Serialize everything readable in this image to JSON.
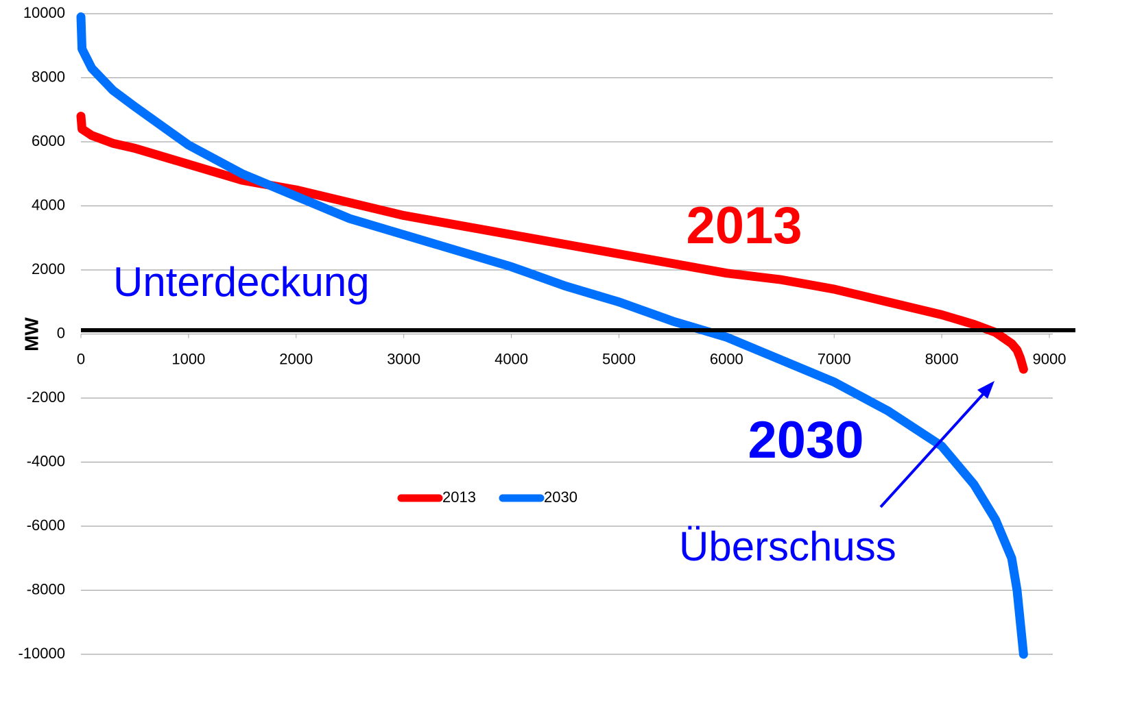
{
  "chart_data": {
    "type": "line",
    "y_label": "MW",
    "x": [
      0,
      10,
      100,
      300,
      500,
      1000,
      1500,
      2000,
      2500,
      3000,
      3500,
      4000,
      4500,
      5000,
      5500,
      6000,
      6500,
      7000,
      7500,
      8000,
      8300,
      8500,
      8650,
      8700,
      8730,
      8760
    ],
    "series": [
      {
        "name": "2013",
        "color": "#ff0000",
        "values": [
          6800,
          6400,
          6200,
          5950,
          5800,
          5300,
          4800,
          4500,
          4100,
          3700,
          3400,
          3100,
          2800,
          2500,
          2200,
          1900,
          1700,
          1400,
          1000,
          600,
          300,
          50,
          -300,
          -500,
          -750,
          -1100
        ]
      },
      {
        "name": "2030",
        "color": "#0070ff",
        "values": [
          9900,
          8900,
          8300,
          7600,
          7100,
          5900,
          5000,
          4300,
          3600,
          3100,
          2600,
          2100,
          1500,
          1000,
          400,
          -100,
          -800,
          -1500,
          -2400,
          -3500,
          -4700,
          -5800,
          -7000,
          -8000,
          -9000,
          -10000
        ]
      }
    ],
    "xlim": [
      0,
      9000
    ],
    "xticks": [
      0,
      1000,
      2000,
      3000,
      4000,
      5000,
      6000,
      7000,
      8000,
      9000
    ],
    "ylim": [
      -10000,
      10000
    ],
    "yticks": [
      -10000,
      -8000,
      -6000,
      -4000,
      -2000,
      0,
      2000,
      4000,
      6000,
      8000,
      10000
    ],
    "grid": true,
    "annotations": [
      "2013",
      "2030",
      "Unterdeckung",
      "Überschuss"
    ]
  }
}
